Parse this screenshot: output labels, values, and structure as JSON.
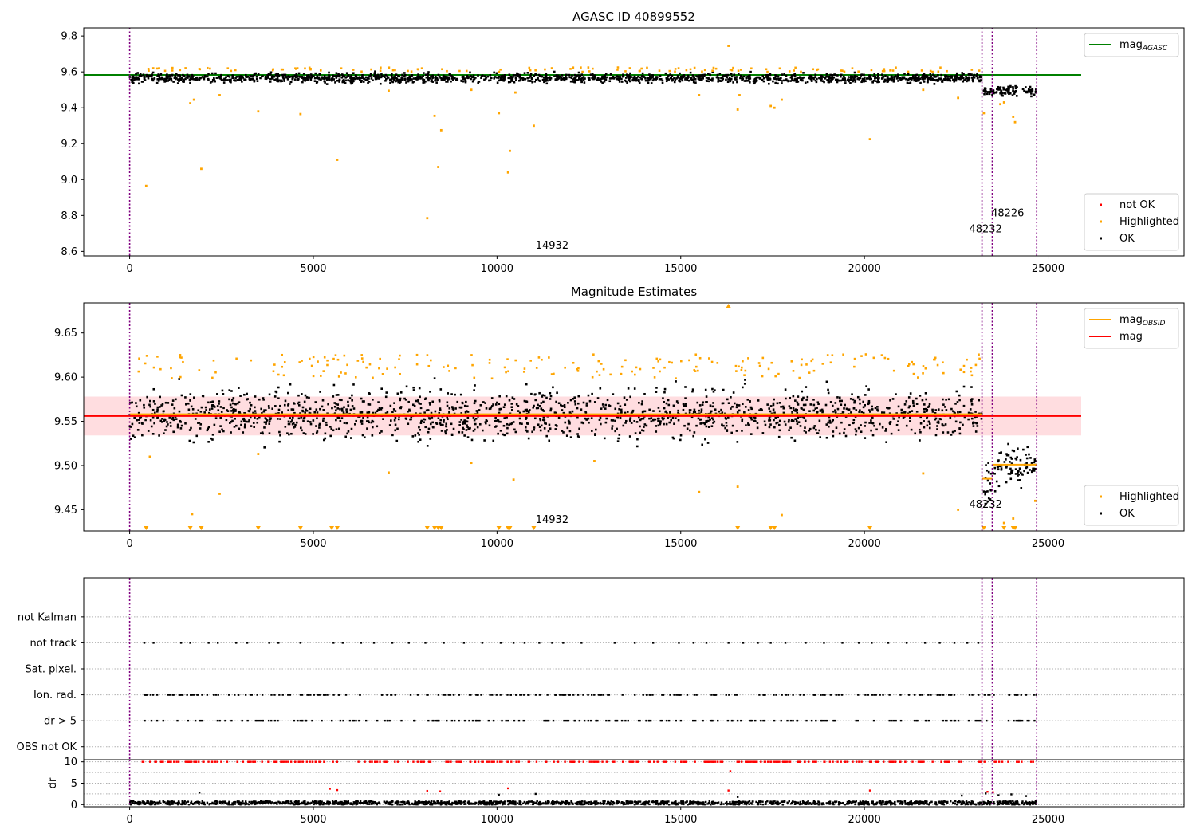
{
  "chart_data": [
    {
      "type": "scatter",
      "title": "AGASC ID 40899552",
      "xlabel": "",
      "ylabel": "",
      "xlim": [
        -1250,
        28700
      ],
      "ylim": [
        8.575,
        9.845
      ],
      "xticks": [
        0,
        5000,
        10000,
        15000,
        20000,
        25000
      ],
      "xtick_labels": [
        "0",
        "5000",
        "10000",
        "15000",
        "20000",
        "25000"
      ],
      "yticks": [
        8.6,
        8.8,
        9.0,
        9.2,
        9.4,
        9.6,
        9.8
      ],
      "ytick_labels": [
        "8.6",
        "8.8",
        "9.0",
        "9.2",
        "9.4",
        "9.6",
        "9.8"
      ],
      "vlines": [
        0,
        23200,
        23480,
        24690
      ],
      "annotations": [
        {
          "text": "14932",
          "x": 11050,
          "y": 8.615
        },
        {
          "text": "48232",
          "x": 22850,
          "y": 8.705
        },
        {
          "text": "48226",
          "x": 23450,
          "y": 8.795
        }
      ],
      "hlines": [
        {
          "name": "mag_AGASC",
          "y": 9.583,
          "x": [
            -1250,
            25900
          ],
          "color": "#008000"
        }
      ],
      "legends": [
        {
          "position": "upper-right",
          "entries": [
            {
              "label_main": "mag",
              "label_sub": "AGASC",
              "marker": "line",
              "color": "#008000"
            }
          ]
        },
        {
          "position": "lower-right",
          "entries": [
            {
              "label": "not OK",
              "marker": "dot",
              "color": "#ff0000"
            },
            {
              "label": "Highlighted",
              "marker": "dot",
              "color": "#ffa500"
            },
            {
              "label": "OK",
              "marker": "dot",
              "color": "#000000"
            }
          ]
        }
      ],
      "bands": [
        {
          "x": [
            0,
            23200
          ],
          "center": 9.565,
          "spread": 0.028,
          "color": "#000000"
        },
        {
          "x": [
            23250,
            24680
          ],
          "center": 9.495,
          "spread": 0.028,
          "color": "#000000"
        }
      ],
      "outlier_cluster": {
        "x": [
          200,
          23150
        ],
        "y_min": 9.6,
        "y_max": 9.625,
        "count": 120,
        "color": "#ffa500"
      },
      "series": [
        {
          "name": "Highlighted",
          "color": "#ffa500",
          "x": [
            450,
            1650,
            1750,
            1950,
            2450,
            3500,
            4650,
            5650,
            7050,
            8100,
            8300,
            8400,
            8480,
            9300,
            10050,
            10300,
            10350,
            10500,
            11000,
            15500,
            16300,
            16550,
            16600,
            17450,
            17550,
            17750,
            20150,
            21600,
            22550,
            23250,
            23700,
            23800,
            24050,
            24100
          ],
          "y": [
            8.965,
            9.425,
            9.445,
            9.06,
            9.47,
            9.38,
            9.365,
            9.11,
            9.495,
            8.785,
            9.355,
            9.07,
            9.275,
            9.5,
            9.37,
            9.04,
            9.16,
            9.485,
            9.3,
            9.47,
            9.745,
            9.39,
            9.47,
            9.41,
            9.4,
            9.445,
            9.225,
            9.5,
            9.455,
            9.37,
            9.42,
            9.43,
            9.35,
            9.32
          ]
        }
      ]
    },
    {
      "type": "scatter",
      "title": "Magnitude Estimates",
      "xlabel": "",
      "ylabel": "",
      "xlim": [
        -1250,
        28700
      ],
      "ylim": [
        9.426,
        9.684
      ],
      "xticks": [
        0,
        5000,
        10000,
        15000,
        20000,
        25000
      ],
      "xtick_labels": [
        "0",
        "5000",
        "10000",
        "15000",
        "20000",
        "25000"
      ],
      "yticks": [
        9.45,
        9.5,
        9.55,
        9.6,
        9.65
      ],
      "ytick_labels": [
        "9.45",
        "9.50",
        "9.55",
        "9.60",
        "9.65"
      ],
      "vlines": [
        0,
        23200,
        23480,
        24690
      ],
      "annotations": [
        {
          "text": "14932",
          "x": 11050,
          "y": 9.435
        },
        {
          "text": "48232",
          "x": 22850,
          "y": 9.452
        }
      ],
      "hlines": [
        {
          "name": "mag",
          "y": 9.556,
          "x": [
            -1250,
            25900
          ],
          "color": "#ff0000"
        },
        {
          "name": "mag_OBSID",
          "y": 9.558,
          "x": [
            0,
            23200
          ],
          "color": "#ffa500"
        },
        {
          "name": "mag_OBSID",
          "y": 9.485,
          "x": [
            23200,
            23480
          ],
          "color": "#ffa500"
        },
        {
          "name": "mag_OBSID",
          "y": 9.501,
          "x": [
            23480,
            24690
          ],
          "color": "#ffa500"
        }
      ],
      "shaded_band": {
        "y": [
          9.534,
          9.578
        ],
        "x": [
          -1250,
          25900
        ],
        "color": "#ffdde0"
      },
      "legends": [
        {
          "position": "upper-right",
          "entries": [
            {
              "label_main": "mag",
              "label_sub": "OBSID",
              "marker": "line",
              "color": "#ffa500"
            },
            {
              "label": "mag",
              "marker": "line",
              "color": "#ff0000"
            }
          ]
        },
        {
          "position": "lower-right",
          "entries": [
            {
              "label": "Highlighted",
              "marker": "dot",
              "color": "#ffa500"
            },
            {
              "label": "OK",
              "marker": "dot",
              "color": "#000000"
            }
          ]
        }
      ],
      "bands": [
        {
          "x": [
            0,
            23200
          ],
          "center": 9.558,
          "spread": 0.03,
          "color": "#000000"
        },
        {
          "x": [
            23230,
            23480
          ],
          "center": 9.48,
          "spread": 0.03,
          "color": "#000000"
        },
        {
          "x": [
            23480,
            24690
          ],
          "center": 9.5,
          "spread": 0.026,
          "color": "#000000"
        }
      ],
      "outlier_cluster": {
        "x": [
          200,
          23150
        ],
        "y_min": 9.598,
        "y_max": 9.626,
        "count": 200,
        "color": "#ffa500"
      },
      "series": [
        {
          "name": "Highlighted",
          "color": "#ffa500",
          "x": [
            550,
            1700,
            2450,
            3500,
            7050,
            9300,
            10450,
            12650,
            15500,
            16550,
            17750,
            21600,
            22550,
            23800,
            24050,
            24650
          ],
          "y": [
            9.51,
            9.445,
            9.468,
            9.513,
            9.492,
            9.503,
            9.484,
            9.505,
            9.47,
            9.476,
            9.444,
            9.491,
            9.45,
            9.435,
            9.44,
            9.46
          ]
        },
        {
          "name": "below_range_markers",
          "color": "#ffa500",
          "x": [
            450,
            1650,
            1950,
            3500,
            4650,
            5500,
            5650,
            8100,
            8300,
            8400,
            8480,
            10050,
            10300,
            10350,
            11000,
            16550,
            17450,
            17550,
            20150,
            23250,
            23800,
            24050,
            24100
          ],
          "y_edge": "bottom"
        },
        {
          "name": "above_range_markers",
          "color": "#ffa500",
          "x": [
            16300
          ],
          "y_edge": "top"
        }
      ]
    },
    {
      "type": "scatter",
      "title": "",
      "xlabel": "",
      "ylabel": "",
      "xlim": [
        -1250,
        28700
      ],
      "ylim": [
        -0.5,
        6.5
      ],
      "categories": [
        "OBS not OK",
        "dr > 5",
        "Ion. rad.",
        "Sat. pixel.",
        "not track",
        "not Kalman"
      ],
      "xticks": [],
      "vlines": [
        0,
        23200,
        23480,
        24690
      ],
      "flags": [
        {
          "name": "not track",
          "x": [
            400,
            650,
            1400,
            1650,
            2150,
            2400,
            2900,
            3200,
            3800,
            4050,
            4650,
            5550,
            5800,
            6300,
            6650,
            7150,
            7600,
            8050,
            8550,
            9100,
            9600,
            10100,
            10450,
            10750,
            11150,
            11500,
            11800,
            12300,
            13200,
            13750,
            14250,
            14950,
            15350,
            15700,
            16300,
            16700,
            17100,
            17450,
            17850,
            18400,
            18900,
            19400,
            19850,
            20200,
            20650,
            21150,
            21650,
            22050,
            22450,
            22800,
            23100
          ]
        },
        {
          "name": "Ion. rad.",
          "range_x": [
            350,
            24690
          ],
          "count": 220
        },
        {
          "name": "dr > 5",
          "range_x": [
            350,
            24690
          ],
          "count": 200
        }
      ]
    },
    {
      "type": "scatter",
      "title": "",
      "xlabel": "",
      "ylabel": "dr",
      "xlim": [
        -1250,
        28700
      ],
      "ylim": [
        -0.5,
        10.5
      ],
      "xticks": [
        0,
        5000,
        10000,
        15000,
        20000,
        25000
      ],
      "xtick_labels": [
        "0",
        "5000",
        "10000",
        "15000",
        "20000",
        "25000"
      ],
      "yticks": [
        0,
        5,
        10
      ],
      "ytick_labels": [
        "0",
        "5",
        "10"
      ],
      "vlines": [
        0,
        23200,
        23480,
        24690
      ],
      "series": [
        {
          "name": "OK",
          "color": "#000000",
          "x_range": [
            0,
            24690
          ],
          "y_range": [
            0,
            0.8
          ],
          "count": 1600
        },
        {
          "name": "not OK",
          "color": "#ff0000",
          "x_range": [
            350,
            24690
          ],
          "y": 10,
          "count": 320
        },
        {
          "name": "not OK",
          "color": "#ff0000",
          "x": [
            5450,
            5650,
            8100,
            8450,
            10300,
            16300,
            16350,
            20150,
            23350,
            23500
          ],
          "y": [
            3.7,
            3.4,
            3.2,
            3.1,
            3.8,
            3.3,
            7.8,
            3.3,
            3.0,
            2.9
          ]
        },
        {
          "name": "OK",
          "color": "#000000",
          "x": [
            1900,
            10050,
            11050,
            16550,
            22650,
            23300,
            23650,
            24000,
            24400
          ],
          "y": [
            2.8,
            2.3,
            2.5,
            1.8,
            2.1,
            2.6,
            2.2,
            2.4,
            2.0
          ]
        }
      ]
    }
  ]
}
